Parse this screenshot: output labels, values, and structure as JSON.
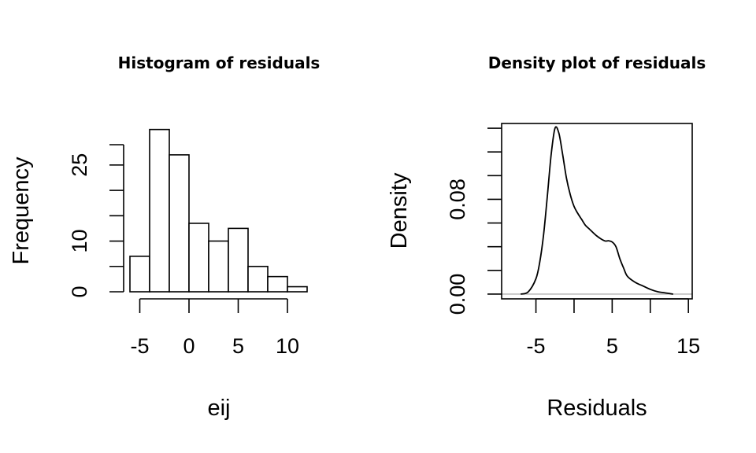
{
  "chart_data": [
    {
      "type": "bar",
      "title": "Histogram of residuals",
      "xlabel": "eij",
      "ylabel": "Frequency",
      "bin_edges": [
        -6,
        -4,
        -2,
        0,
        2,
        4,
        6,
        8,
        10,
        12
      ],
      "values": [
        7,
        32,
        27,
        13.5,
        10,
        12.5,
        5,
        3,
        1
      ],
      "xlim": [
        -6,
        12
      ],
      "ylim": [
        0,
        29
      ],
      "x_ticks": [
        -5,
        0,
        5,
        10
      ],
      "x_tick_labels": [
        "-5",
        "0",
        "5",
        "10"
      ],
      "y_ticks": [
        0,
        5,
        10,
        15,
        20,
        25,
        29
      ],
      "y_tick_labels": [
        "0",
        "",
        "10",
        "",
        "",
        "25",
        ""
      ],
      "grid": false,
      "legend": "none"
    },
    {
      "type": "line",
      "title": "Density plot of residuals",
      "xlabel": "Residuals",
      "ylabel": "Density",
      "x": [
        -7,
        -6,
        -5,
        -4.5,
        -4,
        -3.5,
        -3,
        -2.5,
        -2,
        -1.5,
        -1,
        -0.5,
        0,
        0.5,
        1,
        1.5,
        2,
        3,
        4,
        4.5,
        5,
        5.5,
        6,
        6.5,
        7,
        8,
        9,
        10,
        11,
        12,
        13
      ],
      "y": [
        0,
        0.002,
        0.013,
        0.027,
        0.05,
        0.083,
        0.118,
        0.14,
        0.136,
        0.118,
        0.098,
        0.084,
        0.074,
        0.068,
        0.063,
        0.058,
        0.055,
        0.049,
        0.045,
        0.045,
        0.044,
        0.04,
        0.03,
        0.022,
        0.015,
        0.01,
        0.007,
        0.004,
        0.002,
        0.001,
        0
      ],
      "xlim": [
        -9.5,
        15.5
      ],
      "ylim": [
        -0.004,
        0.144
      ],
      "x_ticks": [
        -5,
        0,
        5,
        10,
        15
      ],
      "x_tick_labels": [
        "-5",
        "",
        "5",
        "",
        "15"
      ],
      "y_ticks": [
        0,
        0.02,
        0.04,
        0.06,
        0.08,
        0.1,
        0.12,
        0.14
      ],
      "y_tick_labels": [
        "0.00",
        "",
        "",
        "",
        "0.08",
        "",
        "",
        ""
      ],
      "baseline": 0,
      "baseline_color": "#bebebe",
      "grid": false,
      "legend": "none"
    }
  ]
}
